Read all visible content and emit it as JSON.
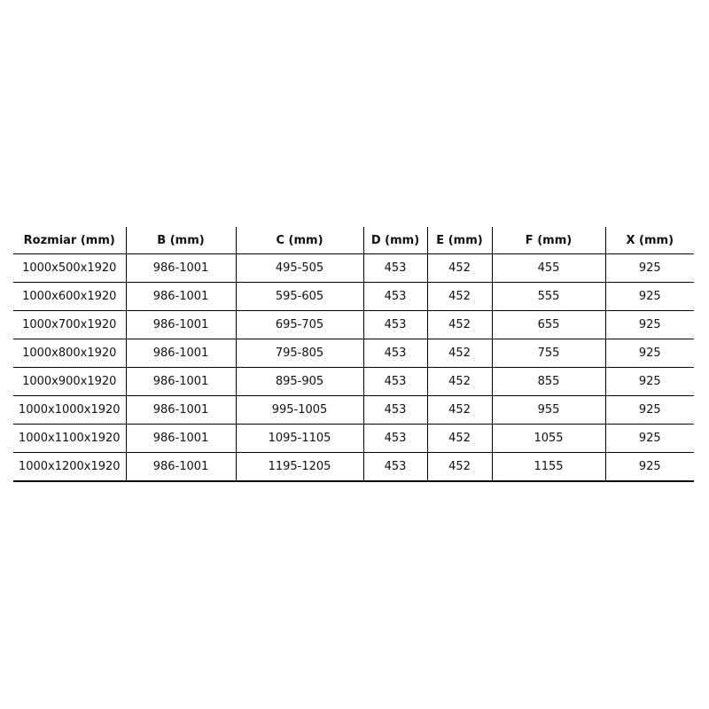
{
  "table": {
    "headers": [
      "Rozmiar (mm)",
      "B (mm)",
      "C (mm)",
      "D (mm)",
      "E (mm)",
      "F (mm)",
      "X (mm)"
    ],
    "rows": [
      [
        "1000x500x1920",
        "986-1001",
        "495-505",
        "453",
        "452",
        "455",
        "925"
      ],
      [
        "1000x600x1920",
        "986-1001",
        "595-605",
        "453",
        "452",
        "555",
        "925"
      ],
      [
        "1000x700x1920",
        "986-1001",
        "695-705",
        "453",
        "452",
        "655",
        "925"
      ],
      [
        "1000x800x1920",
        "986-1001",
        "795-805",
        "453",
        "452",
        "755",
        "925"
      ],
      [
        "1000x900x1920",
        "986-1001",
        "895-905",
        "453",
        "452",
        "855",
        "925"
      ],
      [
        "1000x1000x1920",
        "986-1001",
        "995-1005",
        "453",
        "452",
        "955",
        "925"
      ],
      [
        "1000x1100x1920",
        "986-1001",
        "1095-1105",
        "453",
        "452",
        "1055",
        "925"
      ],
      [
        "1000x1200x1920",
        "986-1001",
        "1195-1205",
        "453",
        "452",
        "1155",
        "925"
      ]
    ]
  }
}
